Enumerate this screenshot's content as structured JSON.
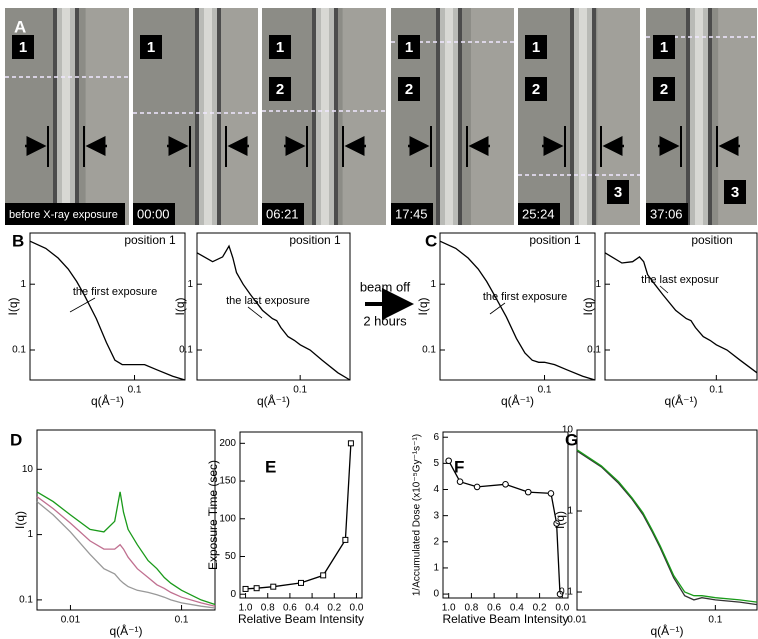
{
  "panel_labels": [
    "A",
    "B",
    "C",
    "D",
    "E",
    "F",
    "G"
  ],
  "photos": [
    {
      "time": "before X-ray exposure",
      "markers": [
        "1"
      ]
    },
    {
      "time": "00:00",
      "markers": [
        "1"
      ]
    },
    {
      "time": "06:21",
      "markers": [
        "1",
        "2"
      ]
    },
    {
      "time": "17:45",
      "markers": [
        "1",
        "2"
      ]
    },
    {
      "time": "25:24",
      "markers": [
        "1",
        "2",
        "3"
      ]
    },
    {
      "time": "37:06",
      "markers": [
        "1",
        "2",
        "3"
      ]
    }
  ],
  "beam_note": {
    "top": "beam off",
    "bottom": "2 hours"
  },
  "chart_data": [
    {
      "type": "line",
      "log_x": true,
      "log_y": true,
      "annotations": [
        "position 1",
        "the first exposure"
      ],
      "x_label": "q(Å⁻¹)",
      "y_label": "I(q)",
      "xlim": [
        0.015,
        0.25
      ],
      "ylim": [
        0.035,
        6
      ],
      "xticks": [
        0.1
      ],
      "yticks": [
        0.1,
        1
      ],
      "color": "#000000",
      "x": [
        0.015,
        0.02,
        0.025,
        0.03,
        0.035,
        0.04,
        0.05,
        0.06,
        0.07,
        0.08,
        0.09,
        0.1,
        0.12,
        0.15,
        0.2,
        0.25
      ],
      "values": [
        4.5,
        3.5,
        2.5,
        1.7,
        1.1,
        0.7,
        0.3,
        0.13,
        0.07,
        0.06,
        0.06,
        0.06,
        0.06,
        0.05,
        0.04,
        0.035
      ]
    },
    {
      "type": "line",
      "log_x": true,
      "log_y": true,
      "annotations": [
        "position 1",
        "the last exposure"
      ],
      "x_label": "q(Å⁻¹)",
      "y_label": "I(q)",
      "xlim": [
        0.015,
        0.25
      ],
      "ylim": [
        0.035,
        6
      ],
      "xticks": [
        0.1
      ],
      "yticks": [
        0.1,
        1
      ],
      "color": "#000000",
      "x": [
        0.015,
        0.02,
        0.024,
        0.027,
        0.029,
        0.031,
        0.035,
        0.04,
        0.05,
        0.06,
        0.065,
        0.07,
        0.08,
        0.09,
        0.1,
        0.12,
        0.15,
        0.2,
        0.25
      ],
      "values": [
        3,
        2.2,
        2.6,
        3.8,
        2.5,
        1.5,
        1,
        0.7,
        0.4,
        0.3,
        0.28,
        0.22,
        0.16,
        0.14,
        0.12,
        0.1,
        0.07,
        0.045,
        0.035
      ]
    },
    {
      "type": "line",
      "log_x": true,
      "log_y": true,
      "annotations": [
        "position 1",
        "the first exposure"
      ],
      "x_label": "q(Å⁻¹)",
      "y_label": "I(q)",
      "xlim": [
        0.015,
        0.25
      ],
      "ylim": [
        0.035,
        6
      ],
      "xticks": [
        0.1
      ],
      "yticks": [
        0.1,
        1
      ],
      "color": "#000000",
      "x": [
        0.015,
        0.02,
        0.025,
        0.03,
        0.035,
        0.04,
        0.05,
        0.06,
        0.07,
        0.08,
        0.09,
        0.1,
        0.12,
        0.15,
        0.2,
        0.25
      ],
      "values": [
        4.5,
        3.5,
        2.5,
        1.7,
        1.1,
        0.7,
        0.32,
        0.15,
        0.09,
        0.07,
        0.065,
        0.065,
        0.06,
        0.05,
        0.04,
        0.035
      ]
    },
    {
      "type": "line",
      "log_x": true,
      "log_y": true,
      "annotations": [
        "position",
        "the last exposur"
      ],
      "x_label": "q(Å⁻¹)",
      "y_label": "I(q)",
      "xlim": [
        0.015,
        0.2
      ],
      "ylim": [
        0.035,
        6
      ],
      "xticks": [
        0.1
      ],
      "yticks": [
        0.1,
        1
      ],
      "color": "#000000",
      "x": [
        0.015,
        0.02,
        0.024,
        0.027,
        0.029,
        0.031,
        0.035,
        0.04,
        0.05,
        0.06,
        0.065,
        0.07,
        0.08,
        0.09,
        0.1,
        0.12,
        0.15,
        0.2
      ],
      "values": [
        3,
        2.1,
        2.2,
        2.6,
        2.2,
        1.4,
        1,
        0.7,
        0.4,
        0.3,
        0.28,
        0.22,
        0.16,
        0.14,
        0.12,
        0.1,
        0.07,
        0.045
      ]
    },
    {
      "type": "line",
      "log_x": true,
      "log_y": true,
      "x_label": "q(Å⁻¹)",
      "y_label": "I(q)",
      "xlim": [
        0.005,
        0.2
      ],
      "ylim": [
        0.07,
        40
      ],
      "xticks": [
        0.01,
        0.1
      ],
      "yticks": [
        0.1,
        1,
        10
      ],
      "x": [
        0.005,
        0.007,
        0.01,
        0.015,
        0.02,
        0.025,
        0.028,
        0.03,
        0.033,
        0.04,
        0.05,
        0.06,
        0.07,
        0.08,
        0.1,
        0.15,
        0.2
      ],
      "series": [
        {
          "color": "#999999",
          "values": [
            3.2,
            2,
            1.1,
            0.5,
            0.3,
            0.25,
            0.2,
            0.18,
            0.16,
            0.14,
            0.13,
            0.12,
            0.11,
            0.1,
            0.09,
            0.08,
            0.075
          ]
        },
        {
          "color": "#c07090",
          "values": [
            3.8,
            2.5,
            1.5,
            0.8,
            0.6,
            0.6,
            0.7,
            0.6,
            0.45,
            0.3,
            0.22,
            0.17,
            0.15,
            0.13,
            0.11,
            0.09,
            0.08
          ]
        },
        {
          "color": "#1a9a1a",
          "values": [
            4.5,
            3.2,
            2,
            1.2,
            1.1,
            1.6,
            4.5,
            2.2,
            1.2,
            0.7,
            0.4,
            0.3,
            0.22,
            0.18,
            0.14,
            0.1,
            0.085
          ]
        }
      ]
    },
    {
      "type": "line",
      "marker": "square",
      "x_label": "Relative Beam Intensity",
      "y_label": "Exposure Time (sec)",
      "xlim": [
        1.05,
        -0.05
      ],
      "ylim": [
        -5,
        215
      ],
      "xticks": [
        {
          "value": 1,
          "label": "1.0"
        },
        0.8,
        0.6,
        0.4,
        0.2,
        {
          "value": 0,
          "label": "0.0"
        }
      ],
      "yticks": [
        0,
        50,
        100,
        150,
        200
      ],
      "color": "#000000",
      "x": [
        1.0,
        0.9,
        0.75,
        0.5,
        0.3,
        0.1,
        0.05
      ],
      "values": [
        7,
        8,
        10,
        15,
        25,
        72,
        200
      ]
    },
    {
      "type": "line",
      "marker": "circle",
      "x_label": "Relative Beam Intensity",
      "y_label": "1/Accumulated Dose (x10⁻⁵Gy⁻¹s⁻¹)",
      "xlim": [
        1.05,
        -0.05
      ],
      "ylim": [
        -0.15,
        6.2
      ],
      "xticks": [
        {
          "value": 1,
          "label": "1.0"
        },
        0.8,
        0.6,
        0.4,
        0.2,
        {
          "value": 0,
          "label": "0.0"
        }
      ],
      "yticks": [
        0,
        1,
        2,
        3,
        4,
        5,
        6
      ],
      "color": "#000000",
      "x": [
        1.0,
        0.9,
        0.75,
        0.5,
        0.3,
        0.1,
        0.05,
        0.02
      ],
      "values": [
        5.1,
        4.3,
        4.1,
        4.2,
        3.9,
        3.85,
        2.7,
        0
      ]
    },
    {
      "type": "line",
      "log_x": true,
      "log_y": true,
      "x_label": "q(Å⁻¹)",
      "y_label": "I(q)",
      "xlim": [
        0.01,
        0.2
      ],
      "ylim": [
        0.06,
        10
      ],
      "xticks": [
        0.01,
        0.1
      ],
      "yticks": [
        0.1,
        1,
        10
      ],
      "x": [
        0.01,
        0.015,
        0.02,
        0.025,
        0.03,
        0.035,
        0.04,
        0.05,
        0.06,
        0.07,
        0.08,
        0.1,
        0.15,
        0.2
      ],
      "series": [
        {
          "color": "#333333",
          "values": [
            5.5,
            3.5,
            2.2,
            1.4,
            0.9,
            0.55,
            0.35,
            0.15,
            0.09,
            0.08,
            0.085,
            0.08,
            0.075,
            0.07
          ]
        },
        {
          "color": "#1a9a1a",
          "values": [
            5.7,
            3.6,
            2.3,
            1.45,
            0.95,
            0.58,
            0.37,
            0.16,
            0.1,
            0.09,
            0.09,
            0.085,
            0.08,
            0.075
          ]
        }
      ]
    }
  ]
}
